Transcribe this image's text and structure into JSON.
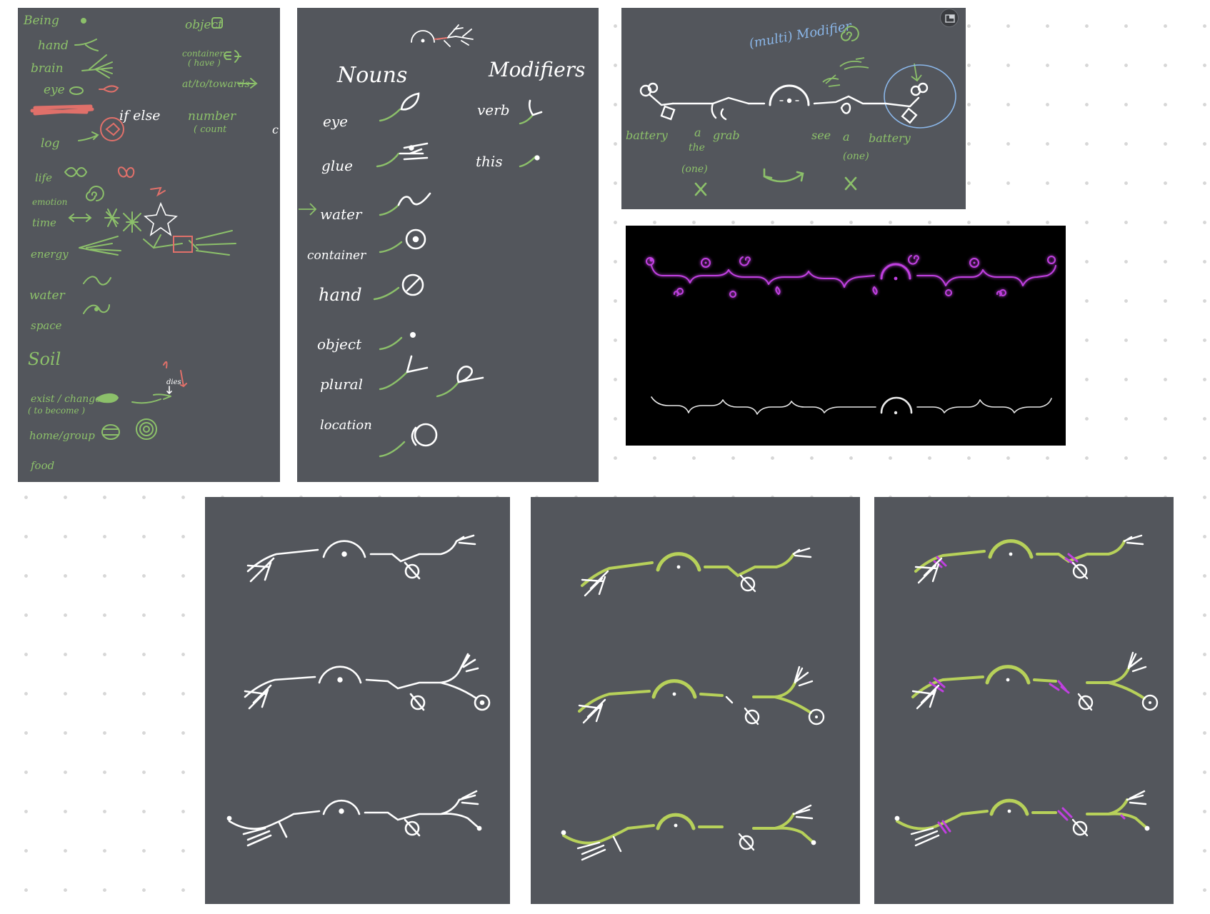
{
  "colors": {
    "canvas": "#ffffff",
    "board": "#53565c",
    "chalk": "#ffffff",
    "green": "#8cc06a",
    "lime": "#b7d15a",
    "red": "#e0706a",
    "purple": "#c040e0",
    "blue": "#8ab6e8"
  },
  "panel1": {
    "labels": [
      "Being",
      "hand",
      "brain",
      "eye",
      "if else",
      "log",
      "life",
      "emotion",
      "time",
      "energy",
      "water",
      "space",
      "Soil",
      "exist / change",
      "( to become )",
      "home/group",
      "food",
      "object",
      "container",
      "( have )",
      "at/to/towards",
      "number",
      "( count",
      "dies",
      "c"
    ]
  },
  "panel2": {
    "nouns_title": "Nouns",
    "modifiers_title": "Modifiers",
    "nouns": [
      "eye",
      "glue",
      "water",
      "container",
      "hand",
      "object",
      "plural",
      "location"
    ],
    "modifiers": [
      "verb",
      "this"
    ]
  },
  "panel3": {
    "annotation": "(multi) Modifier",
    "words": [
      "battery",
      "a",
      "the",
      "(one)",
      "grab",
      "see",
      "a",
      "battery",
      "(one)"
    ]
  },
  "icons": {
    "corner_button": "open-window-icon"
  }
}
